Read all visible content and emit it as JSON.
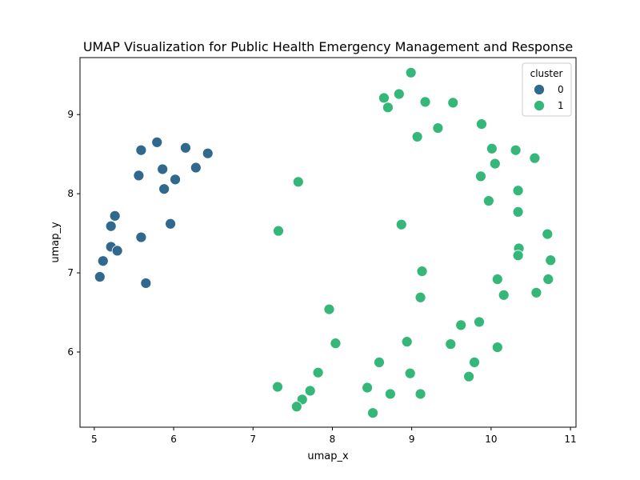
{
  "chart_data": {
    "type": "scatter",
    "title": "UMAP Visualization for Public Health Emergency Management and Response",
    "xlabel": "umap_x",
    "ylabel": "umap_y",
    "xlim": [
      4.82,
      11.07
    ],
    "ylim": [
      5.05,
      9.72
    ],
    "xticks": [
      "5",
      "6",
      "7",
      "8",
      "9",
      "10",
      "11"
    ],
    "yticks": [
      "6",
      "7",
      "8",
      "9"
    ],
    "grid": false,
    "legend": {
      "title": "cluster",
      "placement": "top-right",
      "entries": [
        "0",
        "1"
      ]
    },
    "series": [
      {
        "name": "0",
        "color": "#31688e",
        "points": [
          [
            5.59,
            8.55
          ],
          [
            5.79,
            8.65
          ],
          [
            6.15,
            8.58
          ],
          [
            6.43,
            8.51
          ],
          [
            5.56,
            8.23
          ],
          [
            5.86,
            8.31
          ],
          [
            6.28,
            8.33
          ],
          [
            6.02,
            8.18
          ],
          [
            5.88,
            8.06
          ],
          [
            5.26,
            7.72
          ],
          [
            5.96,
            7.62
          ],
          [
            5.21,
            7.59
          ],
          [
            5.59,
            7.45
          ],
          [
            5.21,
            7.33
          ],
          [
            5.29,
            7.28
          ],
          [
            5.11,
            7.15
          ],
          [
            5.07,
            6.95
          ],
          [
            5.65,
            6.87
          ]
        ]
      },
      {
        "name": "1",
        "color": "#35b779",
        "points": [
          [
            8.99,
            9.53
          ],
          [
            8.65,
            9.21
          ],
          [
            8.84,
            9.26
          ],
          [
            8.7,
            9.09
          ],
          [
            9.17,
            9.16
          ],
          [
            9.52,
            9.15
          ],
          [
            9.33,
            8.83
          ],
          [
            9.07,
            8.72
          ],
          [
            9.88,
            8.88
          ],
          [
            10.01,
            8.57
          ],
          [
            10.31,
            8.55
          ],
          [
            10.55,
            8.45
          ],
          [
            10.05,
            8.38
          ],
          [
            9.87,
            8.22
          ],
          [
            10.34,
            8.04
          ],
          [
            9.97,
            7.91
          ],
          [
            10.34,
            7.77
          ],
          [
            7.57,
            8.15
          ],
          [
            7.32,
            7.53
          ],
          [
            8.87,
            7.61
          ],
          [
            10.71,
            7.49
          ],
          [
            10.35,
            7.31
          ],
          [
            10.34,
            7.22
          ],
          [
            10.75,
            7.16
          ],
          [
            9.13,
            7.02
          ],
          [
            10.08,
            6.92
          ],
          [
            10.72,
            6.92
          ],
          [
            10.57,
            6.75
          ],
          [
            10.16,
            6.72
          ],
          [
            9.11,
            6.69
          ],
          [
            7.96,
            6.54
          ],
          [
            9.62,
            6.34
          ],
          [
            9.85,
            6.38
          ],
          [
            8.04,
            6.11
          ],
          [
            8.94,
            6.13
          ],
          [
            9.49,
            6.1
          ],
          [
            10.08,
            6.06
          ],
          [
            8.59,
            5.87
          ],
          [
            9.79,
            5.87
          ],
          [
            7.82,
            5.74
          ],
          [
            8.98,
            5.73
          ],
          [
            9.72,
            5.69
          ],
          [
            7.31,
            5.56
          ],
          [
            7.72,
            5.51
          ],
          [
            8.44,
            5.55
          ],
          [
            7.62,
            5.4
          ],
          [
            8.73,
            5.47
          ],
          [
            9.11,
            5.47
          ],
          [
            7.55,
            5.31
          ],
          [
            8.51,
            5.23
          ]
        ]
      }
    ]
  }
}
